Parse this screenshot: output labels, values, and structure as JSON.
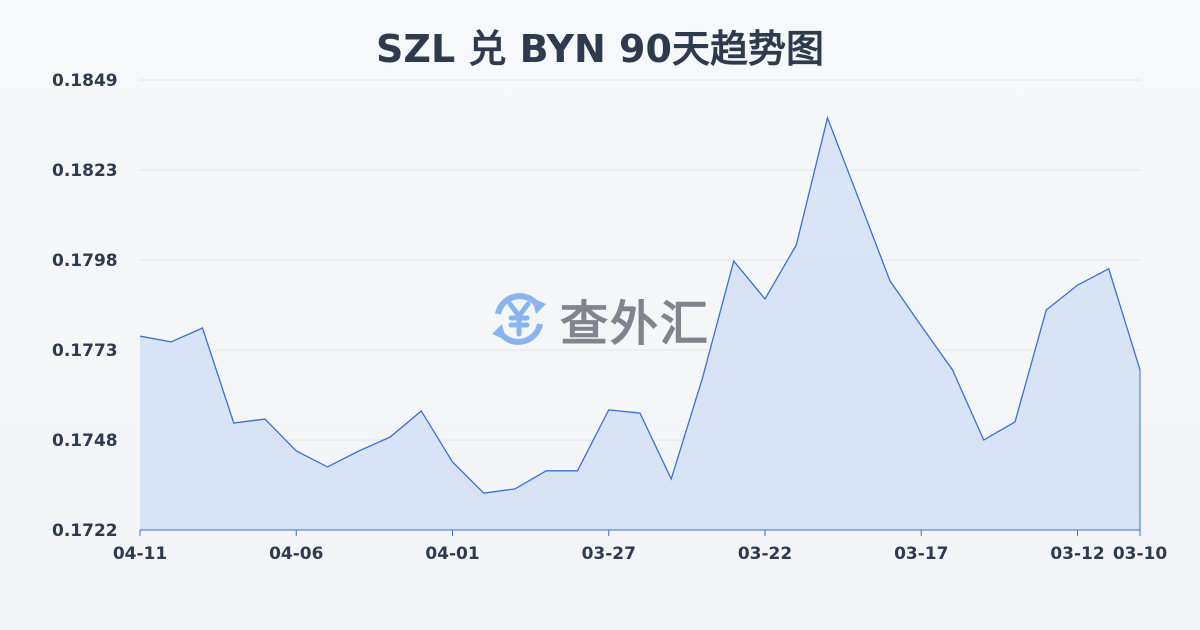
{
  "chart_data": {
    "type": "area",
    "title": "SZL 兑 BYN 90天趋势图",
    "xlabel": "",
    "ylabel": "",
    "ylim": [
      0.1722,
      0.1849
    ],
    "y_ticks": [
      "0.1849",
      "0.1823",
      "0.1798",
      "0.1773",
      "0.1748",
      "0.1722"
    ],
    "x_ticks": [
      "04-11",
      "04-06",
      "04-01",
      "03-27",
      "03-22",
      "03-17",
      "03-12",
      "03-10"
    ],
    "x_tick_index": [
      0,
      5,
      10,
      15,
      20,
      25,
      30,
      32
    ],
    "grid": true,
    "line_color": "#3b6fd4",
    "fill_color": "#d6e1f5",
    "values": [
      0.17767,
      0.17751,
      0.1779,
      0.17522,
      0.17533,
      0.17443,
      0.17398,
      0.17443,
      0.17482,
      0.17556,
      0.17412,
      0.17324,
      0.17336,
      0.17387,
      0.17387,
      0.17559,
      0.1755,
      0.17364,
      0.17649,
      0.17979,
      0.17872,
      0.18024,
      0.18383,
      0.18154,
      0.17923,
      0.17796,
      0.17672,
      0.17474,
      0.17525,
      0.17841,
      0.17911,
      0.17957,
      0.17672
    ]
  },
  "watermark": {
    "text": "查外汇",
    "icon": "yen-exchange-icon",
    "icon_color": "#8ab4f0"
  }
}
